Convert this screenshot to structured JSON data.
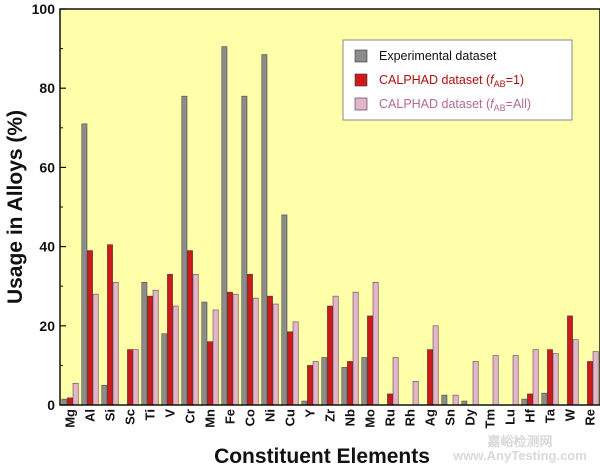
{
  "chart_data": {
    "type": "bar",
    "xlabel": "Constituent Elements",
    "ylabel": "Usage in Alloys (%)",
    "ylim": [
      0,
      100
    ],
    "yticks": [
      0,
      20,
      40,
      60,
      80,
      100
    ],
    "grid": false,
    "legend_position": "top-right",
    "categories": [
      "Mg",
      "Al",
      "Si",
      "Sc",
      "Ti",
      "V",
      "Cr",
      "Mn",
      "Fe",
      "Co",
      "Ni",
      "Cu",
      "Y",
      "Zr",
      "Nb",
      "Mo",
      "Ru",
      "Rh",
      "Ag",
      "Sn",
      "Dy",
      "Tm",
      "Lu",
      "Hf",
      "Ta",
      "W",
      "Re"
    ],
    "series": [
      {
        "name": "Experimental dataset",
        "color": "#8c8c8c",
        "values": [
          1.5,
          71,
          5,
          0,
          31,
          18,
          78,
          26,
          90.5,
          78,
          88.5,
          48,
          1,
          12,
          9.5,
          12,
          0,
          0,
          0,
          2.5,
          1,
          0,
          0,
          1.5,
          3,
          0,
          0
        ]
      },
      {
        "name": "CALPHAD dataset (fAB=1)",
        "name_parts": [
          "CALPHAD dataset (",
          "f",
          "AB",
          "=1)"
        ],
        "color": "#cc1a1a",
        "values": [
          1.8,
          39,
          40.5,
          14,
          27.5,
          33,
          39,
          16,
          28.5,
          33,
          27.5,
          18.5,
          10,
          25,
          11,
          22.5,
          2.8,
          0,
          14,
          0,
          0,
          0,
          0,
          2.8,
          14,
          22.5,
          11
        ]
      },
      {
        "name": "CALPHAD dataset (fAB=All)",
        "name_parts": [
          "CALPHAD dataset (",
          "f",
          "AB",
          "=All)"
        ],
        "color": "#e6b3cc",
        "values": [
          5.5,
          28,
          31,
          14,
          29,
          25,
          33,
          24,
          28,
          27,
          25.5,
          21,
          11,
          27.5,
          28.5,
          31,
          12,
          6,
          20,
          2.5,
          11,
          12.5,
          12.5,
          14,
          13,
          16.5,
          13.5
        ]
      }
    ]
  },
  "watermark": "嘉峪检测网",
  "watermark_url": "www.AnyTesting.com"
}
